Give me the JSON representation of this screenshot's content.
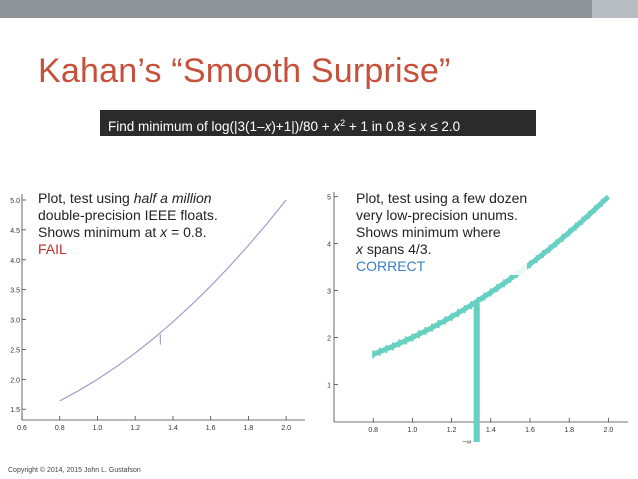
{
  "slide": {
    "title": "Kahan’s “Smooth Surprise”",
    "problem": {
      "text_before": "Find minimum of  log(|3(1–",
      "var_x": "x",
      "text_mid": ")+1|)/80 + ",
      "var_x2": "x",
      "sup2": "2",
      "text_after": " + 1 in 0.8 ≤ ",
      "var_x3": "x",
      "text_end": " ≤ 2.0"
    },
    "copyright": "Copyright © 2014, 2015 John L. Gustafson",
    "colors": {
      "title": "#c7503a",
      "fail": "#c0302a",
      "correct": "#3a7fc2",
      "float_curve": "#9aa3c8",
      "unum_band": "#66d1c3"
    }
  },
  "left_annotation": {
    "line1_prefix": "Plot, test using ",
    "line1_em": "half a million",
    "line2": "double-precision IEEE floats.",
    "line3_prefix": "Shows minimum at ",
    "line3_var": "x",
    "line3_suffix": " = 0.8.",
    "verdict": "FAIL"
  },
  "right_annotation": {
    "line1": "Plot, test using a few dozen",
    "line2": "very low-precision unums.",
    "line3": "Shows minimum where",
    "line4_var": "x",
    "line4_suffix": " spans 4/3.",
    "verdict": "CORRECT"
  },
  "chart_data": [
    {
      "type": "line",
      "xlim": [
        0.6,
        2.1
      ],
      "ylim": [
        1.32,
        5.1
      ],
      "x_ticks": [
        0.6,
        0.8,
        1.0,
        1.2,
        1.4,
        1.6,
        1.8,
        2.0
      ],
      "x_tick_labels": [
        "0.6",
        "0.8",
        "1.0",
        "1.2",
        "1.4",
        "1.6",
        "1.8",
        "2.0"
      ],
      "y_ticks": [
        1.5,
        2.0,
        2.5,
        3.0,
        3.5,
        4.0,
        4.5,
        5.0
      ],
      "y_tick_labels": [
        "1.5",
        "2.0",
        "2.5",
        "3.0",
        "3.5",
        "4.0",
        "4.5",
        "5.0"
      ],
      "series": [
        {
          "x": [
            0.8,
            0.9,
            1.0,
            1.1,
            1.2,
            1.3,
            1.33,
            1.4,
            1.5,
            1.6,
            1.7,
            1.8,
            1.9,
            2.0
          ],
          "y": [
            1.64,
            1.81,
            2.0,
            2.21,
            2.44,
            2.69,
            2.77,
            2.96,
            3.25,
            3.56,
            3.89,
            4.24,
            4.61,
            5.0
          ]
        }
      ],
      "spike": {
        "x": 1.3333,
        "y_top": 2.75,
        "y_bottom": 2.58
      }
    },
    {
      "type": "line",
      "xlim": [
        0.6,
        2.1
      ],
      "ylim": [
        0.2,
        5.1
      ],
      "x_ticks": [
        0.8,
        1.0,
        1.2,
        1.4,
        1.6,
        1.8,
        2.0
      ],
      "x_tick_labels": [
        "0.8",
        "1.0",
        "1.2",
        "1.4",
        "1.6",
        "1.8",
        "2.0"
      ],
      "y_ticks": [
        1,
        2,
        3,
        4,
        5
      ],
      "y_tick_labels": [
        "1",
        "2",
        "3",
        "4",
        "5"
      ],
      "series": [
        {
          "x": [
            0.8,
            0.9,
            1.0,
            1.1,
            1.2,
            1.3,
            1.4,
            1.5,
            1.6,
            1.7,
            1.8,
            1.9,
            2.0
          ],
          "y": [
            1.64,
            1.81,
            2.0,
            2.21,
            2.44,
            2.69,
            2.96,
            3.25,
            3.56,
            3.89,
            4.24,
            4.61,
            5.0
          ]
        }
      ],
      "unum_interval": {
        "x_low": 1.3125,
        "x_high": 1.34375,
        "y_top": 2.73,
        "y_bottom": "−∞"
      },
      "annotation": "−∞"
    }
  ]
}
